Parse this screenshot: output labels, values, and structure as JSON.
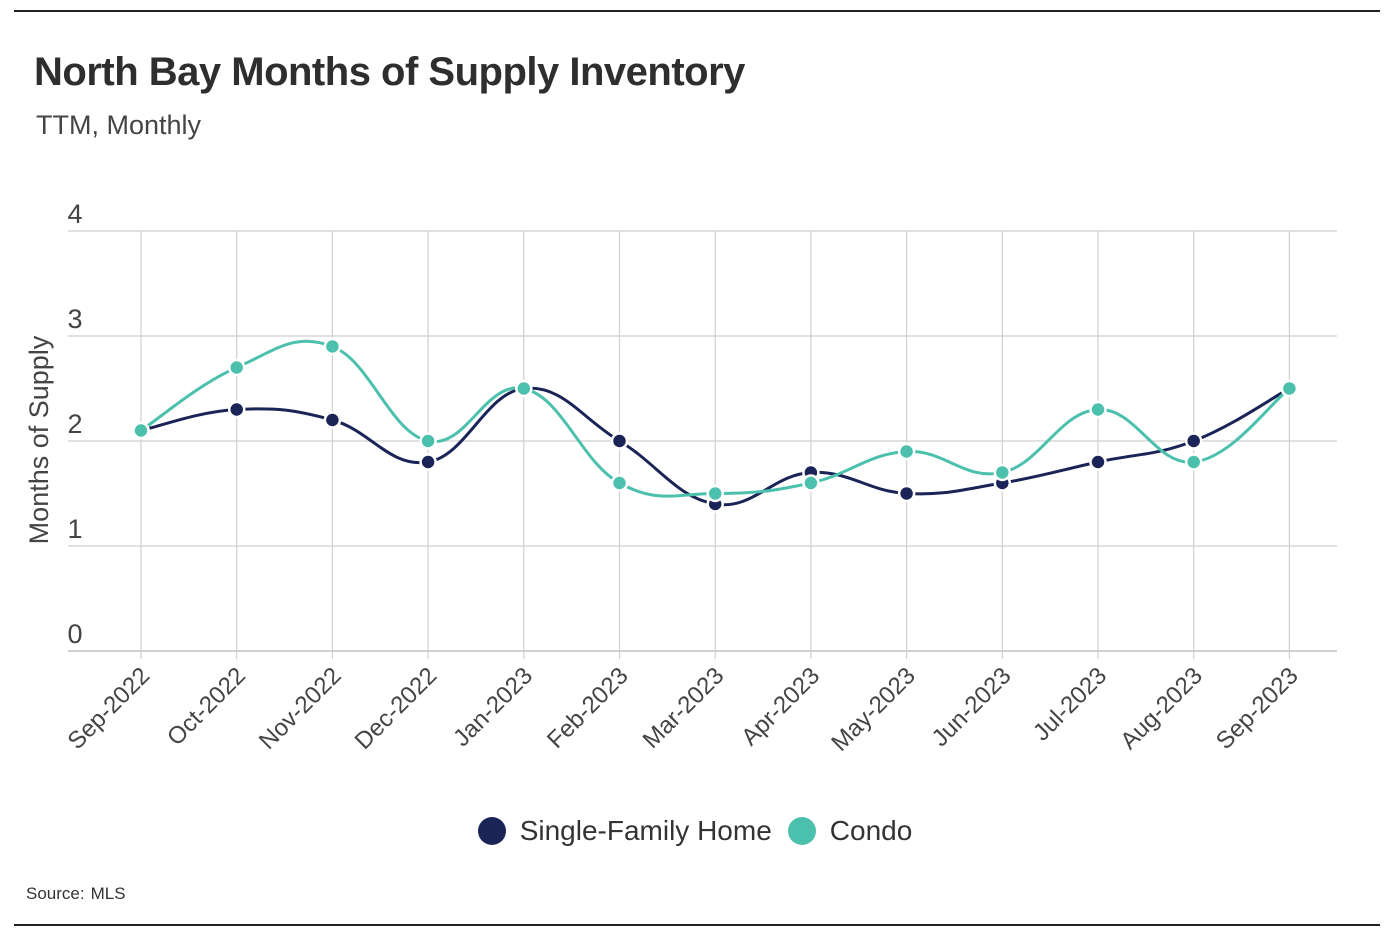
{
  "title": "North Bay Months of Supply Inventory",
  "subtitle": "TTM, Monthly",
  "source": {
    "label": "Source:",
    "value": "MLS"
  },
  "colors": {
    "single_family": "#1b2457",
    "condo": "#4bc1ad",
    "grid": "#cfcfcf"
  },
  "chart_data": {
    "type": "line",
    "title": "North Bay Months of Supply Inventory",
    "subtitle": "TTM, Monthly",
    "xlabel": "",
    "ylabel": "Months of Supply",
    "ylim": [
      0,
      4
    ],
    "yticks": [
      "0",
      "1",
      "2",
      "3",
      "4"
    ],
    "grid": true,
    "legend_position": "bottom",
    "categories": [
      "Sep-2022",
      "Oct-2022",
      "Nov-2022",
      "Dec-2022",
      "Jan-2023",
      "Feb-2023",
      "Mar-2023",
      "Apr-2023",
      "May-2023",
      "Jun-2023",
      "Jul-2023",
      "Aug-2023",
      "Sep-2023"
    ],
    "series": [
      {
        "name": "Single-Family Home",
        "color": "#1b2457",
        "values": [
          2.1,
          2.3,
          2.2,
          1.8,
          2.5,
          2.0,
          1.4,
          1.7,
          1.5,
          1.6,
          1.8,
          2.0,
          2.5
        ]
      },
      {
        "name": "Condo",
        "color": "#4bc1ad",
        "values": [
          2.1,
          2.7,
          2.9,
          2.0,
          2.5,
          1.6,
          1.5,
          1.6,
          1.9,
          1.7,
          2.3,
          1.8,
          2.5
        ]
      }
    ]
  }
}
